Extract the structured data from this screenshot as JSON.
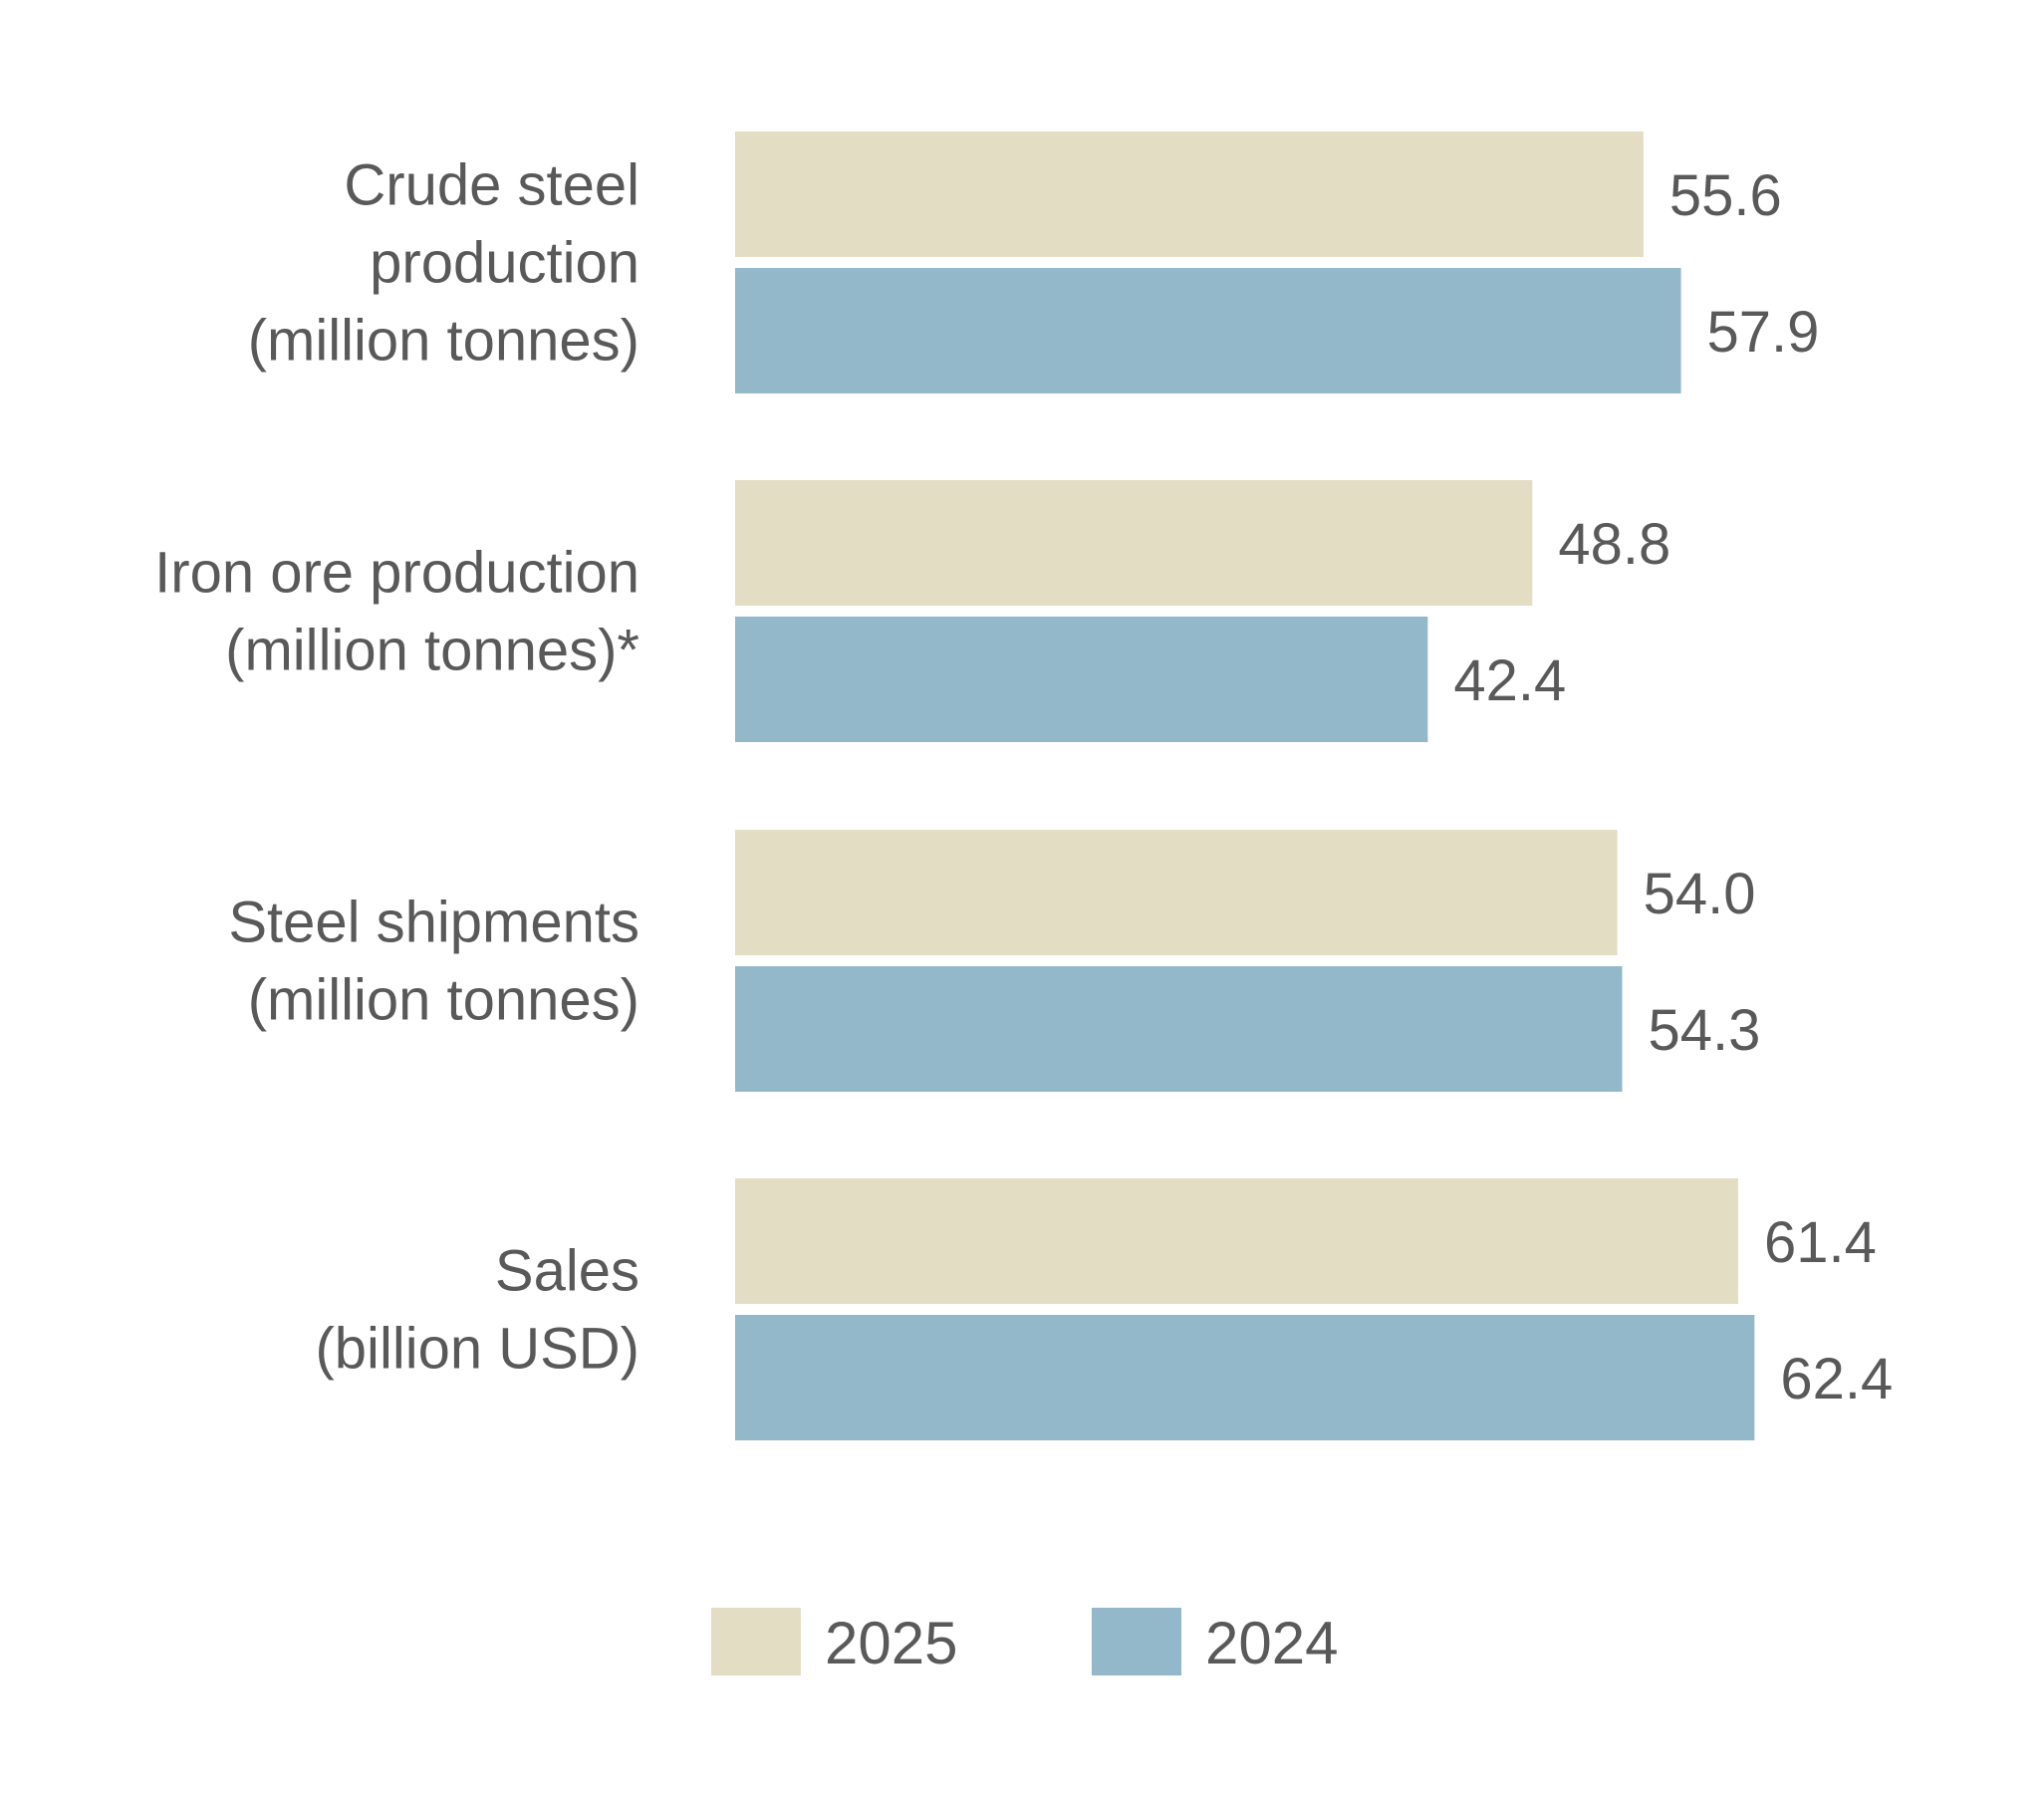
{
  "colors": {
    "series_2025": "#e2ddc3",
    "series_2024": "#92b8ca",
    "text": "#595959",
    "background": "#ffffff"
  },
  "chart_data": {
    "type": "bar",
    "orientation": "horizontal",
    "categories": [
      [
        "Crude steel",
        "production",
        "(million tonnes)"
      ],
      [
        "Iron ore production",
        "(million tonnes)*"
      ],
      [
        "Steel shipments",
        "(million tonnes)"
      ],
      [
        "Sales",
        "(billion USD)"
      ]
    ],
    "series": [
      {
        "name": "2025",
        "values": [
          55.6,
          48.8,
          54.0,
          61.4
        ],
        "labels": [
          "55.6",
          "48.8",
          "54.0",
          "61.4"
        ]
      },
      {
        "name": "2024",
        "values": [
          57.9,
          42.4,
          54.3,
          62.4
        ],
        "labels": [
          "57.9",
          "42.4",
          "54.3",
          "62.4"
        ]
      }
    ],
    "xlim": [
      0,
      70
    ],
    "grid": false,
    "legend": "bottom-center",
    "title": "",
    "xlabel": "",
    "ylabel": ""
  }
}
